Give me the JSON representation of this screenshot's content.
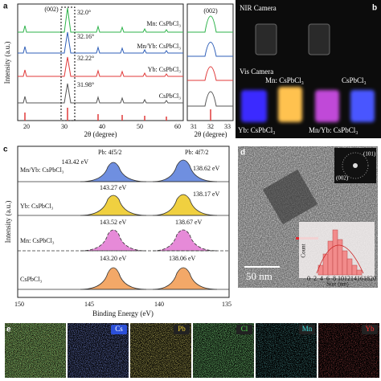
{
  "panel_a": {
    "label": "a",
    "y_label": "Intensity (a.u.)",
    "x_label": "2θ (degree)",
    "xticks": [
      "20",
      "30",
      "40",
      "50",
      "60"
    ],
    "peak_label": "(002)",
    "series": [
      {
        "name": "Mn: CsPbCl₃",
        "peak": "32.0°"
      },
      {
        "name": "Mn/Yb: CsPbCl₃",
        "peak": "32.16°"
      },
      {
        "name": "Yb: CsPbCl₃",
        "peak": "32.22°"
      },
      {
        "name": "CsPbCl₃",
        "peak": "31.98°"
      }
    ],
    "inset": {
      "label": "(002)",
      "xticks": [
        "31",
        "32",
        "33"
      ],
      "x_label": "2θ (degree)"
    }
  },
  "panel_b": {
    "label": "b",
    "nir": "NIR Camera",
    "vis": "Vis Camera",
    "samples": [
      "Mn: CsPbCl₃",
      "CsPbCl₃",
      "Yb: CsPbCl₃",
      "Mn/Yb: CsPbCl₃"
    ]
  },
  "panel_c": {
    "label": "c",
    "y_label": "Intensity (a.u.)",
    "x_label": "Binding Energy (eV)",
    "xticks": [
      "150",
      "145",
      "140",
      "135"
    ],
    "peaks": [
      "Pb: 4f5/2",
      "Pb: 4f7/2"
    ],
    "series": [
      {
        "name": "Mn/Yb: CsPbCl₃",
        "labels": [
          "143.42 eV",
          "138.62 eV"
        ]
      },
      {
        "name": "Yb: CsPbCl₃",
        "labels": [
          "143.27 eV",
          "138.17 eV"
        ]
      },
      {
        "name": "Mn: CsPbCl₃",
        "labels": [
          "143.52 eV",
          "138.67 eV"
        ]
      },
      {
        "name": "CsPbCl₃",
        "labels": [
          "143.20 eV",
          "138.06 eV"
        ]
      }
    ]
  },
  "panel_d": {
    "label": "d",
    "planes": [
      "(101)",
      "(002)"
    ],
    "scale": "50 nm",
    "hist_y": "Count",
    "hist_x": "Size (nm)",
    "hist_ticks": [
      "0",
      "2",
      "4",
      "6",
      "8",
      "10",
      "12",
      "14",
      "16",
      "18",
      "20"
    ]
  },
  "panel_e": {
    "label": "e",
    "elements": [
      "Cs",
      "Pb",
      "Cl",
      "Mn",
      "Yb"
    ]
  }
}
